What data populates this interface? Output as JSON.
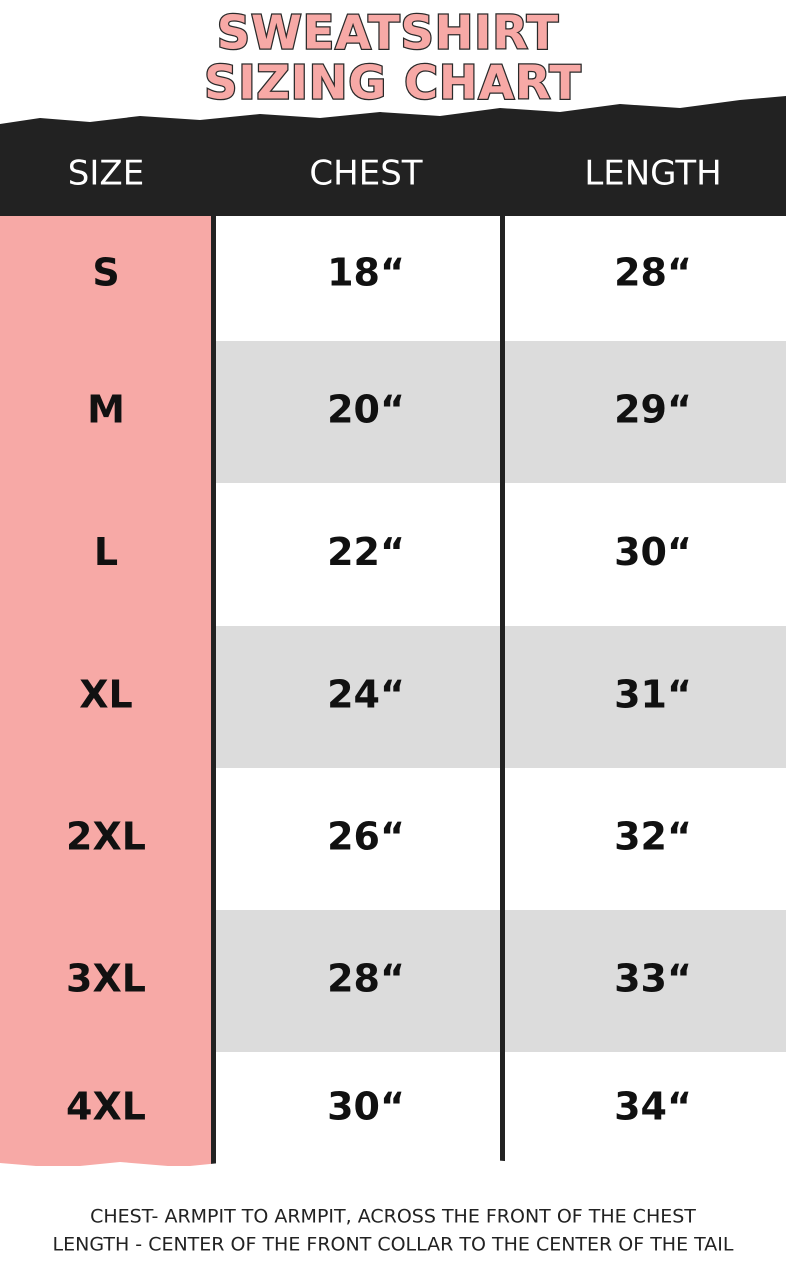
{
  "header": {
    "title_lines": [
      "SWEATSHIRT",
      "SIZING CHART"
    ]
  },
  "table": {
    "columns": [
      "SIZE",
      "CHEST",
      "LENGTH"
    ],
    "rows": [
      [
        "S",
        "18“",
        "28“"
      ],
      [
        "M",
        "20“",
        "29“"
      ],
      [
        "L",
        "22“",
        "30“"
      ],
      [
        "XL",
        "24“",
        "31“"
      ],
      [
        "2XL",
        "26“",
        "32“"
      ],
      [
        "3XL",
        "28“",
        "33“"
      ],
      [
        "4XL",
        "30“",
        "34“"
      ]
    ]
  },
  "notes": [
    "CHEST- ARMPIT TO ARMPIT, ACROSS THE FRONT OF THE CHEST",
    "LENGTH - CENTER OF THE FRONT COLLAR TO THE CENTER OF THE TAIL"
  ]
}
